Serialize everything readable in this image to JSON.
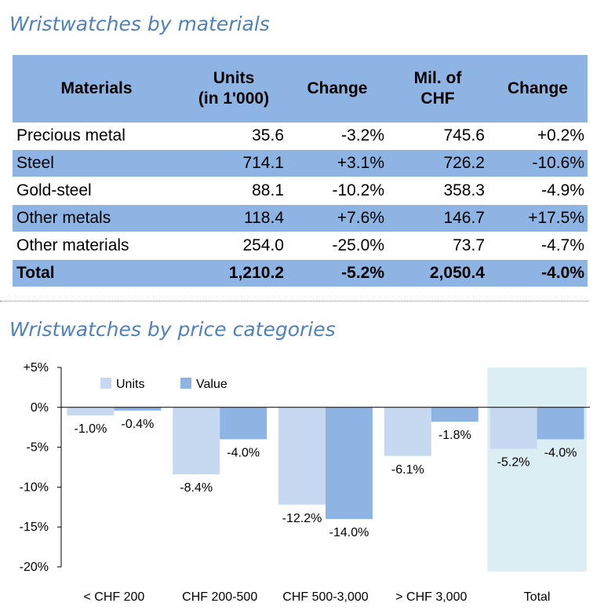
{
  "materials_section": {
    "title": "Wristwatches by materials",
    "headers": {
      "materials": "Materials",
      "units_line1": "Units",
      "units_line2": "(in 1'000)",
      "change1": "Change",
      "chf_line1": "Mil. of",
      "chf_line2": "CHF",
      "change2": "Change"
    },
    "rows": [
      {
        "name": "Precious metal",
        "units": "35.6",
        "units_change": "-3.2%",
        "chf": "745.6",
        "chf_change": "+0.2%"
      },
      {
        "name": "Steel",
        "units": "714.1",
        "units_change": "+3.1%",
        "chf": "726.2",
        "chf_change": "-10.6%"
      },
      {
        "name": "Gold-steel",
        "units": "88.1",
        "units_change": "-10.2%",
        "chf": "358.3",
        "chf_change": "-4.9%"
      },
      {
        "name": "Other metals",
        "units": "118.4",
        "units_change": "+7.6%",
        "chf": "146.7",
        "chf_change": "+17.5%"
      },
      {
        "name": "Other materials",
        "units": "254.0",
        "units_change": "-25.0%",
        "chf": "73.7",
        "chf_change": "-4.7%"
      },
      {
        "name": "Total",
        "units": "1,210.2",
        "units_change": "-5.2%",
        "chf": "2,050.4",
        "chf_change": "-4.0%"
      }
    ],
    "colors": {
      "header_fill": "#8db4e2",
      "title": "#4f81bd"
    }
  },
  "price_section": {
    "title": "Wristwatches by price categories"
  },
  "chart_data": {
    "type": "bar",
    "title": "",
    "xlabel": "",
    "ylabel": "",
    "categories": [
      "< CHF 200",
      "CHF 200-500",
      "CHF 500-3,000",
      "> CHF 3,000",
      "Total"
    ],
    "series": [
      {
        "name": "Units",
        "values": [
          -1.0,
          -8.4,
          -12.2,
          -6.1,
          -5.2
        ],
        "labels": [
          "-1.0%",
          "-8.4%",
          "-12.2%",
          "-6.1%",
          "-5.2%"
        ],
        "color": "#c6d9f1"
      },
      {
        "name": "Value",
        "values": [
          -0.4,
          -4.0,
          -14.0,
          -1.8,
          -4.0
        ],
        "labels": [
          "-0.4%",
          "-4.0%",
          "-14.0%",
          "-1.8%",
          "-4.0%"
        ],
        "color": "#8db4e2"
      }
    ],
    "ylim": [
      -20,
      5
    ],
    "yticks": [
      5,
      0,
      -5,
      -10,
      -15,
      -20
    ],
    "ytick_labels": [
      "+5%",
      "0%",
      "-5%",
      "-10%",
      "-15%",
      "-20%"
    ],
    "legend": "top-left",
    "highlight_category": "Total",
    "highlight_color": "#dbeef4",
    "grid": false
  }
}
